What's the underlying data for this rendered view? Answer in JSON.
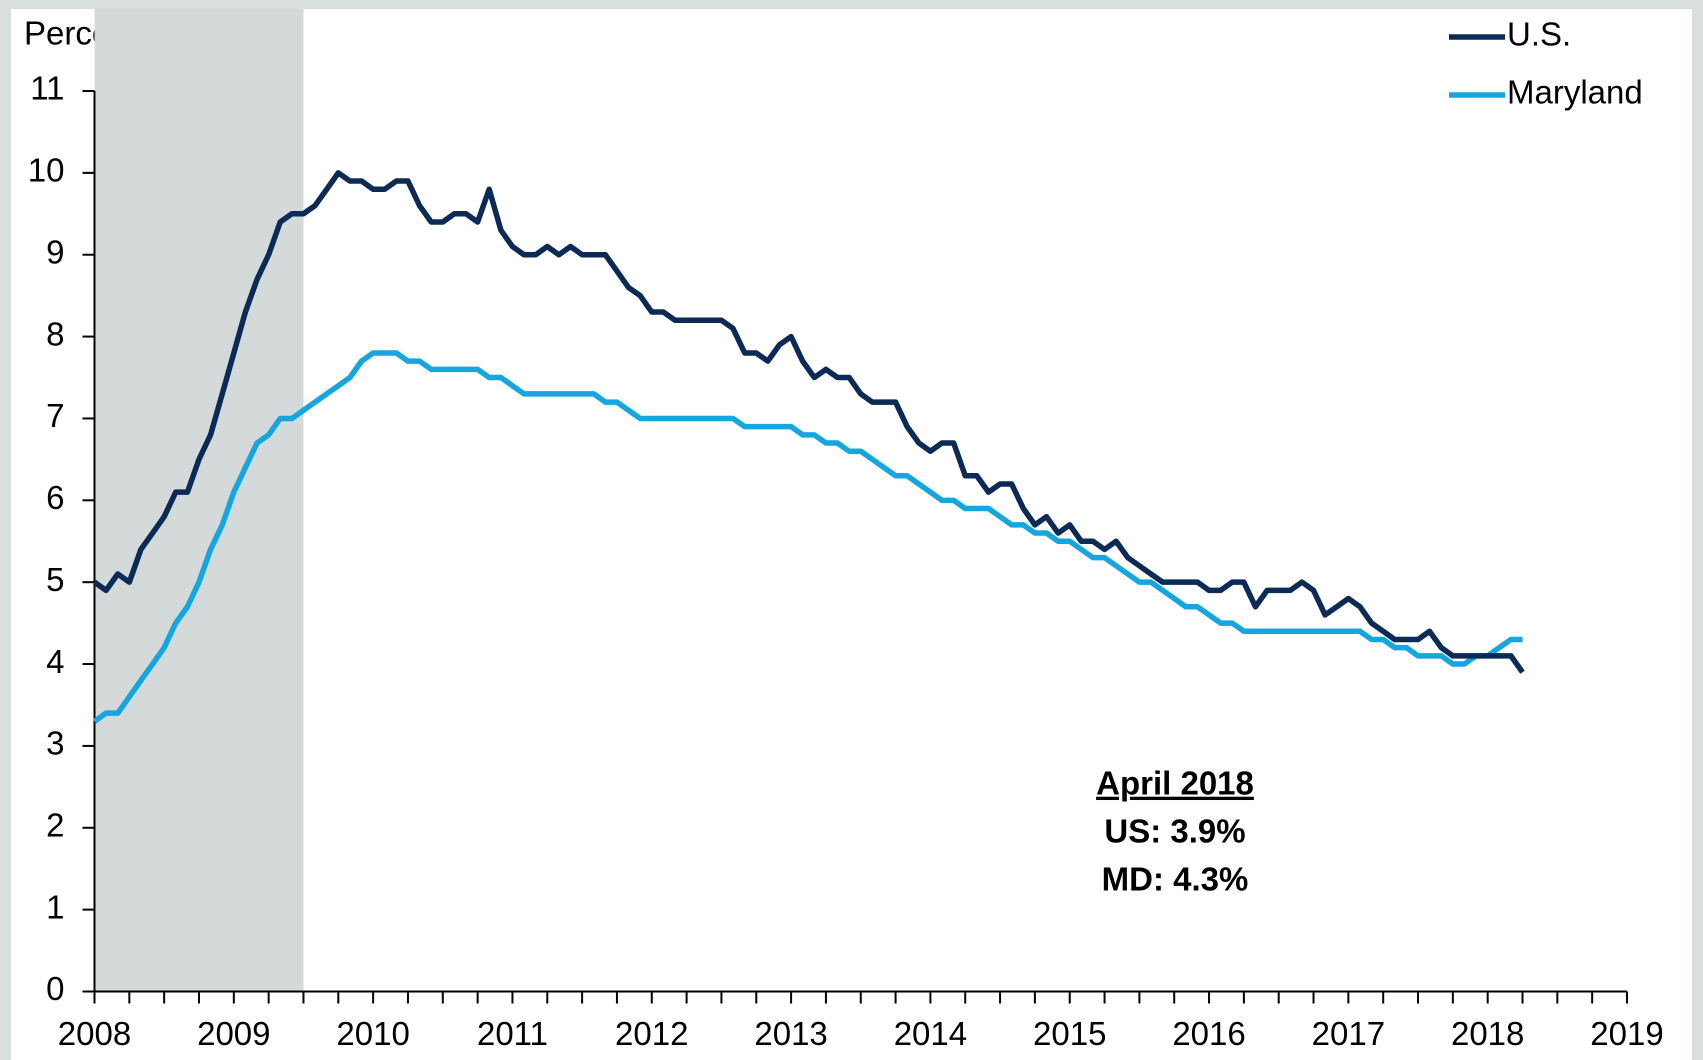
{
  "chart_data": {
    "type": "line",
    "y_label": "Percent",
    "x": [
      2008,
      2008.083,
      2008.167,
      2008.25,
      2008.333,
      2008.417,
      2008.5,
      2008.583,
      2008.667,
      2008.75,
      2008.833,
      2008.917,
      2009,
      2009.083,
      2009.167,
      2009.25,
      2009.333,
      2009.417,
      2009.5,
      2009.583,
      2009.667,
      2009.75,
      2009.833,
      2009.917,
      2010,
      2010.083,
      2010.167,
      2010.25,
      2010.333,
      2010.417,
      2010.5,
      2010.583,
      2010.667,
      2010.75,
      2010.833,
      2010.917,
      2011,
      2011.083,
      2011.167,
      2011.25,
      2011.333,
      2011.417,
      2011.5,
      2011.583,
      2011.667,
      2011.75,
      2011.833,
      2011.917,
      2012,
      2012.083,
      2012.167,
      2012.25,
      2012.333,
      2012.417,
      2012.5,
      2012.583,
      2012.667,
      2012.75,
      2012.833,
      2012.917,
      2013,
      2013.083,
      2013.167,
      2013.25,
      2013.333,
      2013.417,
      2013.5,
      2013.583,
      2013.667,
      2013.75,
      2013.833,
      2013.917,
      2014,
      2014.083,
      2014.167,
      2014.25,
      2014.333,
      2014.417,
      2014.5,
      2014.583,
      2014.667,
      2014.75,
      2014.833,
      2014.917,
      2015,
      2015.083,
      2015.167,
      2015.25,
      2015.333,
      2015.417,
      2015.5,
      2015.583,
      2015.667,
      2015.75,
      2015.833,
      2015.917,
      2016,
      2016.083,
      2016.167,
      2016.25,
      2016.333,
      2016.417,
      2016.5,
      2016.583,
      2016.667,
      2016.75,
      2016.833,
      2016.917,
      2017,
      2017.083,
      2017.167,
      2017.25,
      2017.333,
      2017.417,
      2017.5,
      2017.583,
      2017.667,
      2017.75,
      2017.833,
      2017.917,
      2018,
      2018.083,
      2018.167,
      2018.25
    ],
    "series": [
      {
        "name": "U.S.",
        "color": "#0b2a55",
        "values": [
          5.0,
          4.9,
          5.1,
          5.0,
          5.4,
          5.6,
          5.8,
          6.1,
          6.1,
          6.5,
          6.8,
          7.3,
          7.8,
          8.3,
          8.7,
          9.0,
          9.4,
          9.5,
          9.5,
          9.6,
          9.8,
          10.0,
          9.9,
          9.9,
          9.8,
          9.8,
          9.9,
          9.9,
          9.6,
          9.4,
          9.4,
          9.5,
          9.5,
          9.4,
          9.8,
          9.3,
          9.1,
          9.0,
          9.0,
          9.1,
          9.0,
          9.1,
          9.0,
          9.0,
          9.0,
          8.8,
          8.6,
          8.5,
          8.3,
          8.3,
          8.2,
          8.2,
          8.2,
          8.2,
          8.2,
          8.1,
          7.8,
          7.8,
          7.7,
          7.9,
          8.0,
          7.7,
          7.5,
          7.6,
          7.5,
          7.5,
          7.3,
          7.2,
          7.2,
          7.2,
          6.9,
          6.7,
          6.6,
          6.7,
          6.7,
          6.3,
          6.3,
          6.1,
          6.2,
          6.2,
          5.9,
          5.7,
          5.8,
          5.6,
          5.7,
          5.5,
          5.5,
          5.4,
          5.5,
          5.3,
          5.2,
          5.1,
          5.0,
          5.0,
          5.0,
          5.0,
          4.9,
          4.9,
          5.0,
          5.0,
          4.7,
          4.9,
          4.9,
          4.9,
          5.0,
          4.9,
          4.6,
          4.7,
          4.8,
          4.7,
          4.5,
          4.4,
          4.3,
          4.3,
          4.3,
          4.4,
          4.2,
          4.1,
          4.1,
          4.1,
          4.1,
          4.1,
          4.1,
          3.9
        ]
      },
      {
        "name": "Maryland",
        "color": "#15a6e0",
        "values": [
          3.3,
          3.4,
          3.4,
          3.6,
          3.8,
          4.0,
          4.2,
          4.5,
          4.7,
          5.0,
          5.4,
          5.7,
          6.1,
          6.4,
          6.7,
          6.8,
          7.0,
          7.0,
          7.1,
          7.2,
          7.3,
          7.4,
          7.5,
          7.7,
          7.8,
          7.8,
          7.8,
          7.7,
          7.7,
          7.6,
          7.6,
          7.6,
          7.6,
          7.6,
          7.5,
          7.5,
          7.4,
          7.3,
          7.3,
          7.3,
          7.3,
          7.3,
          7.3,
          7.3,
          7.2,
          7.2,
          7.1,
          7.0,
          7.0,
          7.0,
          7.0,
          7.0,
          7.0,
          7.0,
          7.0,
          7.0,
          6.9,
          6.9,
          6.9,
          6.9,
          6.9,
          6.8,
          6.8,
          6.7,
          6.7,
          6.6,
          6.6,
          6.5,
          6.4,
          6.3,
          6.3,
          6.2,
          6.1,
          6.0,
          6.0,
          5.9,
          5.9,
          5.9,
          5.8,
          5.7,
          5.7,
          5.6,
          5.6,
          5.5,
          5.5,
          5.4,
          5.3,
          5.3,
          5.2,
          5.1,
          5.0,
          5.0,
          4.9,
          4.8,
          4.7,
          4.7,
          4.6,
          4.5,
          4.5,
          4.4,
          4.4,
          4.4,
          4.4,
          4.4,
          4.4,
          4.4,
          4.4,
          4.4,
          4.4,
          4.4,
          4.3,
          4.3,
          4.2,
          4.2,
          4.1,
          4.1,
          4.1,
          4.0,
          4.0,
          4.1,
          4.1,
          4.2,
          4.3,
          4.3
        ]
      }
    ],
    "shaded_region": {
      "xlim": [
        2008,
        2009.5
      ],
      "color": "#d4d9da"
    },
    "annotations": [
      "April 2018",
      "US: 3.9%",
      "MD: 4.3%"
    ],
    "xlim": [
      2008,
      2019
    ],
    "xticks": [
      2008,
      2009,
      2010,
      2011,
      2012,
      2013,
      2014,
      2015,
      2016,
      2017,
      2018,
      2019
    ],
    "ylim": [
      0,
      11
    ],
    "yticks": [
      0,
      1,
      2,
      3,
      4,
      5,
      6,
      7,
      8,
      9,
      10,
      11
    ],
    "legend": "top-right",
    "grid": false
  }
}
